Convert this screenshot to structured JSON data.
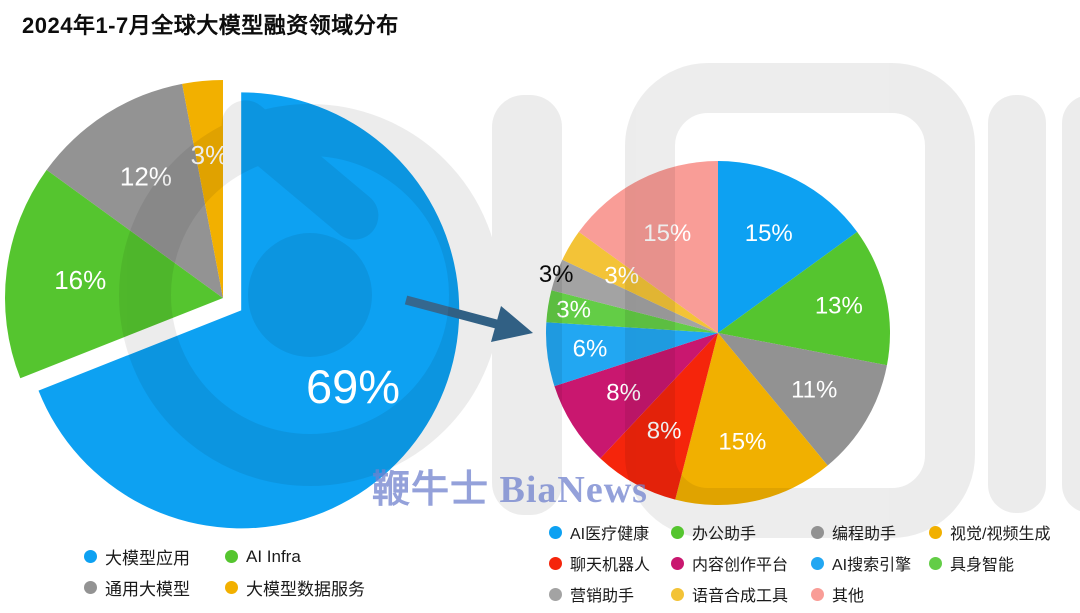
{
  "title": "2024年1-7月全球大模型融资领域分布",
  "watermarks": {
    "bianews": "鞭牛士 BiaNews"
  },
  "chart_data": [
    {
      "id": "left-pie",
      "type": "pie",
      "categories": [
        "大模型应用",
        "AI Infra",
        "通用大模型",
        "大模型数据服务"
      ],
      "values": [
        69,
        16,
        12,
        3
      ],
      "labels": [
        "69%",
        "16%",
        "12%",
        "3%"
      ],
      "colors": [
        "#0da1f2",
        "#55c52f",
        "#939393",
        "#f2b000"
      ],
      "start_angle_deg": 0,
      "direction": "clockwise",
      "exploded_slice": "大模型应用",
      "legend_position": "bottom-left"
    },
    {
      "id": "right-pie",
      "type": "pie",
      "categories": [
        "AI医疗健康",
        "办公助手",
        "编程助手",
        "视觉/视频生成",
        "聊天机器人",
        "内容创作平台",
        "AI搜索引擎",
        "具身智能",
        "营销助手",
        "语音合成工具",
        "其他"
      ],
      "values": [
        15,
        13,
        11,
        15,
        8,
        8,
        6,
        3,
        3,
        3,
        15
      ],
      "labels": [
        "15%",
        "13%",
        "11%",
        "15%",
        "8%",
        "8%",
        "6%",
        "3%",
        "3%",
        "3%",
        "15%"
      ],
      "colors": [
        "#0da1f2",
        "#55c52f",
        "#929292",
        "#f1b000",
        "#f5250b",
        "#c9176f",
        "#22a7f2",
        "#63cd46",
        "#a3a3a3",
        "#f3c337",
        "#f99d97"
      ],
      "start_angle_deg": 0,
      "direction": "clockwise",
      "outside_labels": [
        "营销助手"
      ],
      "legend_position": "bottom-right"
    }
  ]
}
